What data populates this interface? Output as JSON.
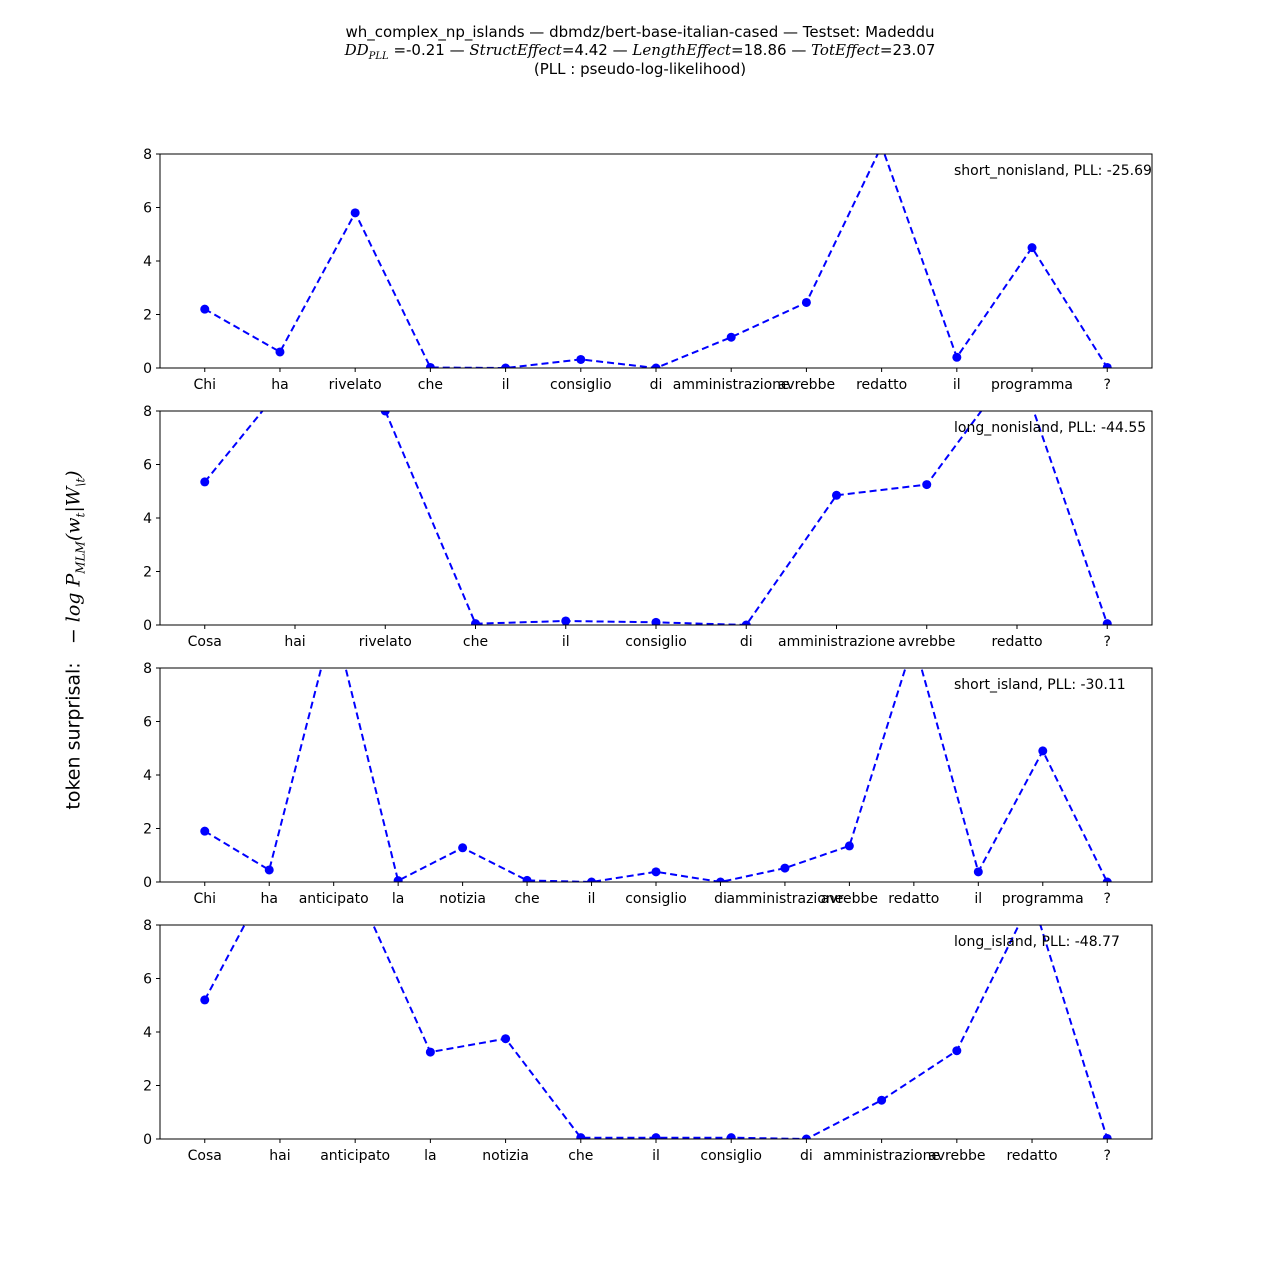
{
  "figure": {
    "title_line1": "wh_complex_np_islands — dbmdz/bert-base-italian-cased — Testset:  Madeddu",
    "title_line2": {
      "dd_label": "DD",
      "dd_sub": "PLL",
      "dd_value": "=-0.21",
      "sep1": " — ",
      "struct_label": "StructEffect",
      "struct_value": "=4.42",
      "sep2": " — ",
      "length_label": "LengthEffect",
      "length_value": "=18.86",
      "sep3": " — ",
      "tot_label": "TotEffect",
      "tot_value": "=23.07"
    },
    "title_line3": "(PLL : pseudo-log-likelihood)",
    "ylabel_prefix": "token surprisal:",
    "ylabel_math": "− log P",
    "ylabel_sub": "MLM",
    "ylabel_rest": "(w",
    "ylabel_sub2": "t",
    "ylabel_end": "|W",
    "ylabel_sub3": "\\t",
    "ylabel_close": ")"
  },
  "chart_data": [
    {
      "type": "line",
      "annotation": "short_nonisland, PLL: -25.69",
      "ylim": [
        0,
        8
      ],
      "yticks": [
        0,
        2,
        4,
        6,
        8
      ],
      "color": "#0000ff",
      "line_style": "dashed",
      "marker": "circle",
      "categories": [
        "Chi",
        "ha",
        "rivelato",
        "che",
        "il",
        "consiglio",
        "di",
        "amministrazione",
        "avrebbe",
        "redatto",
        "il",
        "programma",
        "?"
      ],
      "values": [
        2.2,
        0.6,
        5.8,
        0.02,
        0.0,
        0.32,
        0.0,
        1.15,
        2.45,
        8.3,
        0.4,
        4.5,
        0.02
      ]
    },
    {
      "type": "line",
      "annotation": "long_nonisland, PLL: -44.55",
      "ylim": [
        0,
        8
      ],
      "yticks": [
        0,
        2,
        4,
        6,
        8
      ],
      "color": "#0000ff",
      "line_style": "dashed",
      "marker": "circle",
      "categories": [
        "Cosa",
        "hai",
        "rivelato",
        "che",
        "il",
        "consiglio",
        "di",
        "amministrazione",
        "avrebbe",
        "redatto",
        "?"
      ],
      "values": [
        5.35,
        9.5,
        8.0,
        0.05,
        0.15,
        0.1,
        0.0,
        4.85,
        5.25,
        9.8,
        0.05
      ]
    },
    {
      "type": "line",
      "annotation": "short_island, PLL: -30.11",
      "ylim": [
        0,
        8
      ],
      "yticks": [
        0,
        2,
        4,
        6,
        8
      ],
      "color": "#0000ff",
      "line_style": "dashed",
      "marker": "circle",
      "categories": [
        "Chi",
        "ha",
        "anticipato",
        "la",
        "notizia",
        "che",
        "il",
        "consiglio",
        "di",
        "amministrazione",
        "avrebbe",
        "redatto",
        "il",
        "programma",
        "?"
      ],
      "values": [
        1.9,
        0.45,
        9.8,
        0.05,
        1.28,
        0.06,
        0.0,
        0.38,
        0.0,
        0.52,
        1.35,
        9.0,
        0.38,
        4.9,
        0.0
      ]
    },
    {
      "type": "line",
      "annotation": "long_island, PLL: -48.77",
      "ylim": [
        0,
        8
      ],
      "yticks": [
        0,
        2,
        4,
        6,
        8
      ],
      "color": "#0000ff",
      "line_style": "dashed",
      "marker": "circle",
      "categories": [
        "Cosa",
        "hai",
        "anticipato",
        "la",
        "notizia",
        "che",
        "il",
        "consiglio",
        "di",
        "amministrazione",
        "avrebbe",
        "redatto",
        "?"
      ],
      "values": [
        5.2,
        10.5,
        9.5,
        3.25,
        3.75,
        0.05,
        0.05,
        0.05,
        0.0,
        1.45,
        3.3,
        9.0,
        0.02
      ]
    }
  ]
}
